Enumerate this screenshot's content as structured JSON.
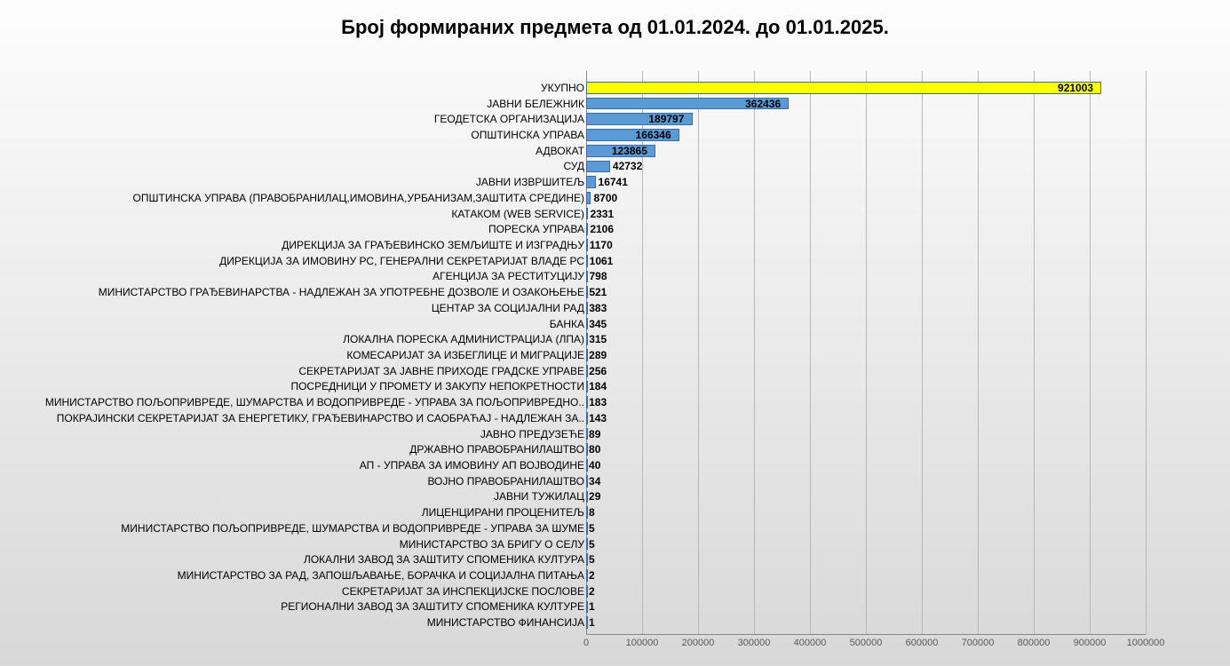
{
  "chart": {
    "title": "Број формираних предмета од 01.01.2024. до 01.01.2025.",
    "title_fontsize": 22,
    "title_color": "#000000",
    "type": "bar-horizontal",
    "background_gradient_from": "#fdfdfd",
    "background_gradient_to": "#d8d8d8",
    "xlim": [
      0,
      1000000
    ],
    "xtick_step": 100000,
    "xtick_labels": [
      "0",
      "100000",
      "200000",
      "300000",
      "400000",
      "500000",
      "600000",
      "700000",
      "800000",
      "900000",
      "1000000"
    ],
    "grid_color": "#b8b8b8",
    "axis_label_color": "#595959",
    "bar_color": "#5b9bd5",
    "bar_border_color": "#3d6aa0",
    "highlight_bar_color": "#ffff00",
    "value_label_color": "#000000",
    "value_label_fontsize": 12,
    "value_label_weight": "bold",
    "category_label_fontsize": 12,
    "category_label_color": "#000000",
    "bars": [
      {
        "label": "УКУПНО",
        "value": 921003,
        "highlight": true
      },
      {
        "label": "ЈАВНИ БЕЛЕЖНИК",
        "value": 362436
      },
      {
        "label": "ГЕОДЕТСКА ОРГАНИЗАЦИЈА",
        "value": 189797
      },
      {
        "label": "ОПШТИНСКА УПРАВА",
        "value": 166346
      },
      {
        "label": "АДВОКАТ",
        "value": 123865
      },
      {
        "label": "СУД",
        "value": 42732
      },
      {
        "label": "ЈАВНИ ИЗВРШИТЕЉ",
        "value": 16741
      },
      {
        "label": "ОПШТИНСКА УПРАВА (ПРАВОБРАНИЛАЦ,ИМОВИНА,УРБАНИЗАМ,ЗАШТИТА СРЕДИНЕ)",
        "value": 8700
      },
      {
        "label": "КАТАКОМ (WEB SERVICE)",
        "value": 2331
      },
      {
        "label": "ПОРЕСКА УПРАВА",
        "value": 2106
      },
      {
        "label": "ДИРЕКЦИЈА ЗА ГРАЂЕВИНСКО ЗЕМЉИШТЕ И ИЗГРАДЊУ",
        "value": 1170
      },
      {
        "label": "ДИРЕКЦИЈА ЗА ИМОВИНУ РС, ГЕНЕРАЛНИ СЕКРЕТАРИЈАТ ВЛАДЕ РС",
        "value": 1061
      },
      {
        "label": "АГЕНЦИЈА ЗА РЕСТИТУЦИЈУ",
        "value": 798
      },
      {
        "label": "МИНИСТАРСТВО ГРАЂЕВИНАРСТВА - НАДЛЕЖАН ЗА УПОТРЕБНЕ ДОЗВОЛЕ И ОЗАКОЊЕЊЕ",
        "value": 521
      },
      {
        "label": "ЦЕНТАР ЗА СОЦИЈАЛНИ РАД",
        "value": 383
      },
      {
        "label": "БАНКА",
        "value": 345
      },
      {
        "label": "ЛОКАЛНА ПОРЕСКА АДМИНИСТРАЦИЈА (ЛПА)",
        "value": 315
      },
      {
        "label": "КОМЕСАРИЈАТ ЗА ИЗБЕГЛИЦЕ И МИГРАЦИЈЕ",
        "value": 289
      },
      {
        "label": "СЕКРЕТАРИЈАТ ЗА ЈАВНЕ ПРИХОДЕ ГРАДСКЕ УПРАВЕ",
        "value": 256
      },
      {
        "label": "ПОСРЕДНИЦИ У ПРОМЕТУ И ЗАКУПУ НЕПОКРЕТНОСТИ",
        "value": 184
      },
      {
        "label": "МИНИСТАРСТВО ПОЉОПРИВРЕДЕ, ШУМАРСТВА И ВОДОПРИВРЕДЕ - УПРАВА ЗА ПОЉОПРИВРЕДНО..",
        "value": 183
      },
      {
        "label": "ПОКРАЈИНСКИ СЕКРЕТАРИЈАТ ЗА ЕНЕРГЕТИКУ, ГРАЂЕВИНАРСТВО И САОБРАЋАЈ - НАДЛЕЖАН ЗА..",
        "value": 143
      },
      {
        "label": "ЈАВНО ПРЕДУЗЕЋЕ",
        "value": 89
      },
      {
        "label": "ДРЖАВНО ПРАВОБРАНИЛАШТВО",
        "value": 80
      },
      {
        "label": "АП - УПРАВА ЗА ИМОВИНУ АП ВОЈВОДИНЕ",
        "value": 40
      },
      {
        "label": "ВОЈНО ПРАВОБРАНИЛАШТВО",
        "value": 34
      },
      {
        "label": "ЈАВНИ ТУЖИЛАЦ",
        "value": 29
      },
      {
        "label": "ЛИЦЕНЦИРАНИ ПРОЦЕНИТЕЉ",
        "value": 8
      },
      {
        "label": "МИНИСТАРСТВО ПОЉОПРИВРЕДЕ, ШУМАРСТВА И ВОДОПРИВРЕДЕ - УПРАВА ЗА ШУМЕ",
        "value": 5
      },
      {
        "label": "МИНИСТАРСТВО ЗА БРИГУ О СЕЛУ",
        "value": 5
      },
      {
        "label": "ЛОКАЛНИ ЗАВОД ЗА ЗАШТИТУ СПОМЕНИКА КУЛТУРА",
        "value": 5
      },
      {
        "label": "МИНИСТАРСТВО ЗА РАД, ЗАПОШЉАВАЊЕ, БОРАЧКА И СОЦИЈАЛНА ПИТАЊА",
        "value": 2
      },
      {
        "label": "СЕКРЕТАРИЈАТ ЗА ИНСПЕКЦИЈСКЕ ПОСЛОВЕ",
        "value": 2
      },
      {
        "label": "РЕГИОНАЛНИ ЗАВОД ЗА ЗАШТИТУ СПОМЕНИКА КУЛТУРЕ",
        "value": 1
      },
      {
        "label": "МИНИСТАРСТВО ФИНАНСИЈА",
        "value": 1
      }
    ]
  }
}
